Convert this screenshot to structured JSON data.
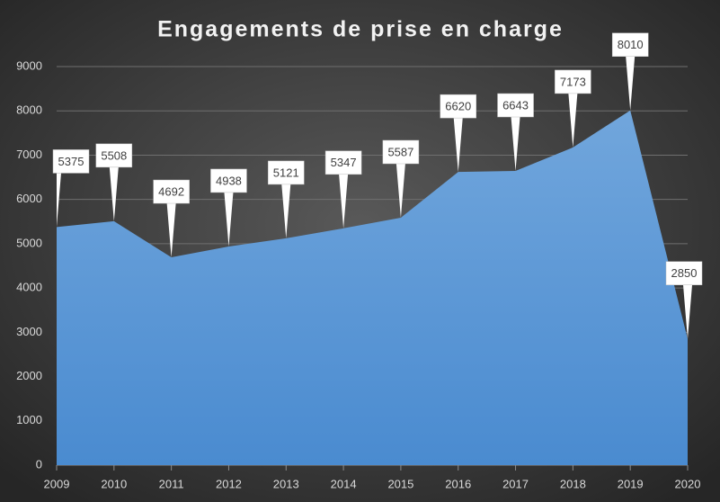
{
  "chart_data": {
    "type": "area",
    "title": "Engagements de prise en charge",
    "categories": [
      "2009",
      "2010",
      "2011",
      "2012",
      "2013",
      "2014",
      "2015",
      "2016",
      "2017",
      "2018",
      "2019",
      "2020"
    ],
    "values": [
      5375,
      5508,
      4692,
      4938,
      5121,
      5347,
      5587,
      6620,
      6643,
      7173,
      8010,
      2850
    ],
    "color": "#5b9bd5",
    "ylim": [
      0,
      9000
    ],
    "yticks": [
      0,
      1000,
      2000,
      3000,
      4000,
      5000,
      6000,
      7000,
      8000,
      9000
    ],
    "grid": true,
    "data_labels": true
  }
}
